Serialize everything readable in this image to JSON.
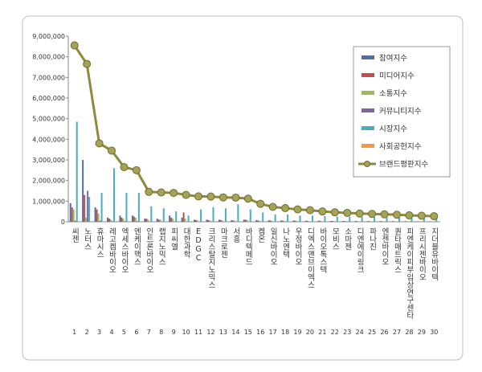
{
  "chart_data": {
    "type": "bar-line",
    "categories": [
      "씨젠",
      "노터스",
      "휴마시스",
      "레고켐바이오",
      "엑세스바이오",
      "엔케이맥스",
      "인트론바이오",
      "랩지노믹스",
      "피씨엘",
      "대한과학",
      "EDGC",
      "크리스탈지노믹스",
      "마크로젠",
      "서흥",
      "바디텍메드",
      "켐온",
      "일신바이오",
      "나노엔텍",
      "우정바이오",
      "디엑스앤브이엑스",
      "바이오톡스텍",
      "모비스",
      "소마젠",
      "디엔에이링크",
      "파나진",
      "엔젠바이오",
      "퀀타매트릭스",
      "피엔케이피부임상연구센타",
      "프리시젠바이오",
      "지더블유바이텍"
    ],
    "ranks": [
      1,
      2,
      3,
      4,
      5,
      6,
      7,
      8,
      9,
      10,
      11,
      12,
      13,
      14,
      15,
      16,
      17,
      18,
      19,
      20,
      21,
      22,
      23,
      24,
      25,
      26,
      27,
      28,
      29,
      30
    ],
    "series": [
      {
        "name": "참여지수",
        "color": "#4f6fa8",
        "values": [
          900000,
          3000000,
          700000,
          200000,
          300000,
          300000,
          150000,
          150000,
          300000,
          200000,
          100000,
          100000,
          100000,
          80000,
          100000,
          80000,
          70000,
          60000,
          60000,
          50000,
          50000,
          40000,
          40000,
          40000,
          30000,
          30000,
          30000,
          30000,
          20000,
          20000
        ]
      },
      {
        "name": "미디어지수",
        "color": "#c0504d",
        "values": [
          700000,
          1300000,
          600000,
          150000,
          200000,
          250000,
          150000,
          100000,
          200000,
          450000,
          80000,
          80000,
          80000,
          60000,
          100000,
          60000,
          60000,
          50000,
          50000,
          40000,
          40000,
          40000,
          30000,
          30000,
          30000,
          30000,
          20000,
          20000,
          20000,
          20000
        ]
      },
      {
        "name": "소통지수",
        "color": "#9bbb59",
        "values": [
          600000,
          200000,
          400000,
          100000,
          150000,
          200000,
          100000,
          100000,
          150000,
          150000,
          60000,
          60000,
          60000,
          50000,
          80000,
          50000,
          40000,
          40000,
          40000,
          30000,
          30000,
          30000,
          30000,
          20000,
          20000,
          20000,
          20000,
          20000,
          20000,
          20000
        ]
      },
      {
        "name": "커뮤니티지수",
        "color": "#8064a2",
        "values": [
          50000,
          1500000,
          50000,
          30000,
          30000,
          30000,
          20000,
          20000,
          20000,
          20000,
          10000,
          10000,
          10000,
          10000,
          10000,
          10000,
          10000,
          10000,
          10000,
          10000,
          10000,
          10000,
          10000,
          10000,
          10000,
          10000,
          10000,
          10000,
          10000,
          10000
        ]
      },
      {
        "name": "시장지수",
        "color": "#4bacc6",
        "values": [
          4850000,
          1200000,
          1400000,
          2600000,
          1400000,
          1400000,
          750000,
          650000,
          500000,
          300000,
          600000,
          700000,
          650000,
          850000,
          600000,
          450000,
          350000,
          350000,
          300000,
          300000,
          280000,
          250000,
          250000,
          230000,
          220000,
          210000,
          200000,
          180000,
          170000,
          160000
        ]
      },
      {
        "name": "사회공헌지수",
        "color": "#f79646",
        "values": [
          0,
          0,
          0,
          0,
          0,
          0,
          0,
          0,
          0,
          0,
          0,
          0,
          0,
          0,
          0,
          0,
          0,
          0,
          0,
          0,
          0,
          0,
          0,
          0,
          0,
          0,
          0,
          0,
          0,
          0
        ]
      },
      {
        "name": "브랜드평판지수",
        "color": "#8c8a3c",
        "line": true,
        "values": [
          8550000,
          7650000,
          3800000,
          3450000,
          2650000,
          2500000,
          1450000,
          1420000,
          1400000,
          1300000,
          1230000,
          1220000,
          1180000,
          1170000,
          1120000,
          870000,
          720000,
          660000,
          600000,
          560000,
          500000,
          460000,
          430000,
          400000,
          380000,
          360000,
          340000,
          310000,
          290000,
          270000
        ]
      }
    ],
    "ylim": [
      0,
      9000000
    ],
    "yticks": [
      0,
      {
        "value": 1000000,
        "label": "1,000,000"
      },
      {
        "value": 2000000,
        "label": "2,000,000"
      },
      {
        "value": 3000000,
        "label": "3,000,000"
      },
      {
        "value": 4000000,
        "label": "4,000,000"
      },
      {
        "value": 5000000,
        "label": "5,000,000"
      },
      {
        "value": 6000000,
        "label": "6,000,000"
      },
      {
        "value": 7000000,
        "label": "7,000,000"
      },
      {
        "value": 8000000,
        "label": "8,000,000"
      },
      {
        "value": 9000000,
        "label": "9,000,000"
      }
    ],
    "grid": false,
    "legend": "right"
  }
}
